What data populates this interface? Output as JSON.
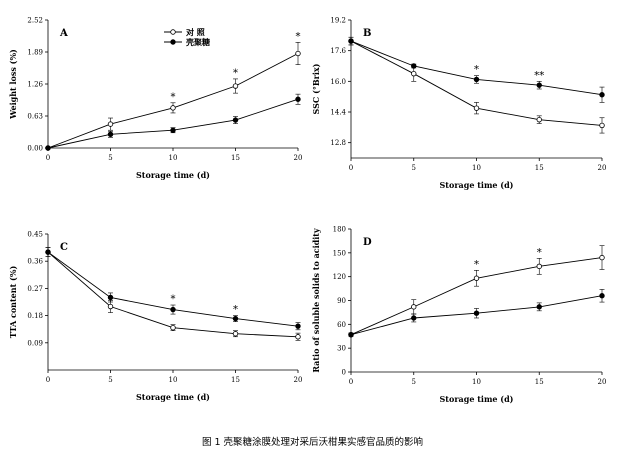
{
  "caption": "图 1  壳聚糖涂膜处理对采后沃柑果实感官品质的影响",
  "legend": {
    "control_label": "对    照",
    "treatment_label": "壳聚糖"
  },
  "chart_data": [
    {
      "panel": "A",
      "type": "line",
      "x": [
        0,
        5,
        10,
        15,
        20
      ],
      "xticks": [
        "0",
        "5",
        "10",
        "15",
        "20"
      ],
      "xlim": [
        0,
        20
      ],
      "xlabel": "Storage time (d)",
      "ylabel": "Weight loss (%)",
      "ylim": [
        0,
        2.52
      ],
      "yticks": [
        "0.00",
        "0.63",
        "1.26",
        "1.89",
        "2.52"
      ],
      "yticks_values": [
        0,
        0.63,
        1.26,
        1.89,
        2.52
      ],
      "series": [
        {
          "name": "对照",
          "marker": "open",
          "values": [
            0,
            0.47,
            0.79,
            1.22,
            1.86
          ],
          "errors": [
            0,
            0.12,
            0.1,
            0.14,
            0.22
          ]
        },
        {
          "name": "壳聚糖",
          "marker": "filled",
          "values": [
            0,
            0.27,
            0.35,
            0.55,
            0.96
          ],
          "errors": [
            0,
            0.06,
            0.05,
            0.07,
            0.1
          ]
        }
      ],
      "significance": [
        {
          "x": 10,
          "label": "*"
        },
        {
          "x": 15,
          "label": "*"
        },
        {
          "x": 20,
          "label": "*"
        }
      ],
      "show_legend": true
    },
    {
      "panel": "B",
      "type": "line",
      "x": [
        0,
        5,
        10,
        15,
        20
      ],
      "xticks": [
        "0",
        "5",
        "10",
        "15",
        "20"
      ],
      "xlim": [
        0,
        20
      ],
      "xlabel": "Storage time (d)",
      "ylabel": "SSC (°Brix)",
      "ylim": [
        12.0,
        19.2
      ],
      "yticks": [
        "12.8",
        "14.4",
        "16.0",
        "17.6",
        "19.2"
      ],
      "yticks_values": [
        12.8,
        14.4,
        16.0,
        17.6,
        19.2
      ],
      "series": [
        {
          "name": "对照",
          "marker": "open",
          "values": [
            18.1,
            16.4,
            14.6,
            14.0,
            13.7
          ],
          "errors": [
            0.2,
            0.4,
            0.3,
            0.2,
            0.4
          ]
        },
        {
          "name": "壳聚糖",
          "marker": "filled",
          "values": [
            18.1,
            16.8,
            16.1,
            15.8,
            15.3
          ],
          "errors": [
            0.2,
            0.1,
            0.2,
            0.2,
            0.4
          ]
        }
      ],
      "significance": [
        {
          "x": 10,
          "label": "*"
        },
        {
          "x": 15,
          "label": "**"
        }
      ],
      "show_legend": false
    },
    {
      "panel": "C",
      "type": "line",
      "x": [
        0,
        5,
        10,
        15,
        20
      ],
      "xticks": [
        "0",
        "5",
        "10",
        "15",
        "20"
      ],
      "xlim": [
        0,
        20
      ],
      "xlabel": "Storage time (d)",
      "ylabel": "TTA content (%)",
      "ylim": [
        0,
        0.45
      ],
      "yticks": [
        "0.09",
        "0.18",
        "0.27",
        "0.36",
        "0.45"
      ],
      "yticks_values": [
        0.09,
        0.18,
        0.27,
        0.36,
        0.45
      ],
      "series": [
        {
          "name": "对照",
          "marker": "open",
          "values": [
            0.39,
            0.21,
            0.14,
            0.12,
            0.11
          ],
          "errors": [
            0.015,
            0.02,
            0.01,
            0.01,
            0.012
          ]
        },
        {
          "name": "壳聚糖",
          "marker": "filled",
          "values": [
            0.39,
            0.24,
            0.2,
            0.17,
            0.145
          ],
          "errors": [
            0.015,
            0.015,
            0.015,
            0.01,
            0.012
          ]
        }
      ],
      "significance": [
        {
          "x": 10,
          "label": "*"
        },
        {
          "x": 15,
          "label": "*"
        }
      ],
      "show_legend": false
    },
    {
      "panel": "D",
      "type": "line",
      "x": [
        0,
        5,
        10,
        15,
        20
      ],
      "xticks": [
        "0",
        "5",
        "10",
        "15",
        "20"
      ],
      "xlim": [
        0,
        20
      ],
      "xlabel": "Storage time (d)",
      "ylabel": "Ratio of soluble solids to acidity",
      "ylim": [
        0,
        180
      ],
      "yticks": [
        "0",
        "30",
        "60",
        "90",
        "120",
        "150",
        "180"
      ],
      "yticks_values": [
        0,
        30,
        60,
        90,
        120,
        150,
        180
      ],
      "series": [
        {
          "name": "对照",
          "marker": "open",
          "values": [
            47,
            82,
            118,
            133,
            144
          ],
          "errors": [
            2,
            9,
            10,
            10,
            15
          ]
        },
        {
          "name": "壳聚糖",
          "marker": "filled",
          "values": [
            47,
            68,
            74,
            82,
            96
          ],
          "errors": [
            2,
            5,
            6,
            5,
            8
          ]
        }
      ],
      "significance": [
        {
          "x": 10,
          "label": "*"
        },
        {
          "x": 15,
          "label": "*"
        }
      ],
      "show_legend": false
    }
  ]
}
